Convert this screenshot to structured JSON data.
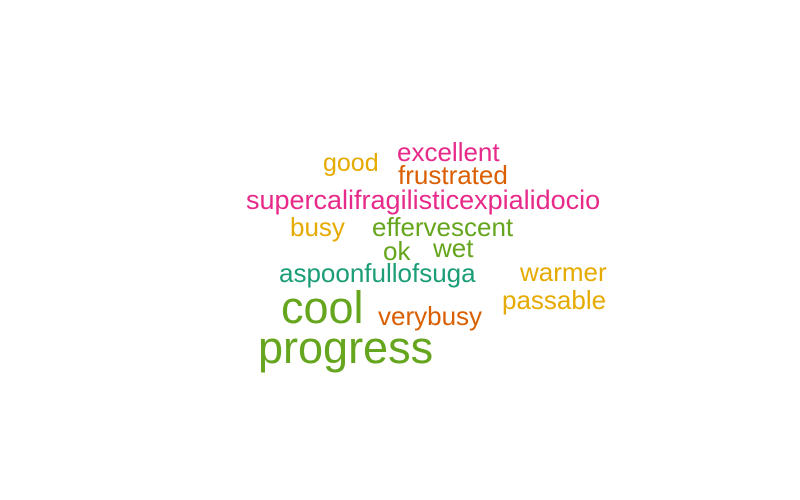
{
  "colors": {
    "pink": "#e7298a",
    "orange": "#d95f02",
    "gold": "#e6ab02",
    "green": "#66a61e",
    "teal": "#1b9e77",
    "background": "#ffffff"
  },
  "words": [
    {
      "text": "excellent",
      "color": "#e7298a"
    },
    {
      "text": "good",
      "color": "#e6ab02"
    },
    {
      "text": "frustrated",
      "color": "#d95f02"
    },
    {
      "text": "supercalifragilisticexpialidocio",
      "color": "#e7298a"
    },
    {
      "text": "busy",
      "color": "#e6ab02"
    },
    {
      "text": "effervescent",
      "color": "#66a61e"
    },
    {
      "text": "wet",
      "color": "#66a61e"
    },
    {
      "text": "ok",
      "color": "#66a61e"
    },
    {
      "text": "aspoonfullofsuga",
      "color": "#1b9e77"
    },
    {
      "text": "warmer",
      "color": "#e6ab02"
    },
    {
      "text": "passable",
      "color": "#e6ab02"
    },
    {
      "text": "cool",
      "color": "#66a61e"
    },
    {
      "text": "verybusy",
      "color": "#d95f02"
    },
    {
      "text": "progress",
      "color": "#66a61e"
    }
  ]
}
